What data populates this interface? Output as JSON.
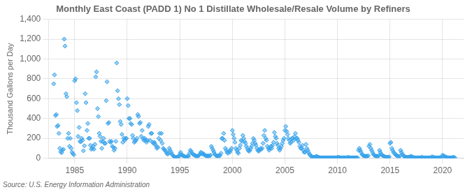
{
  "chart_data": {
    "type": "scatter",
    "title": "Monthly East Coast (PADD 1) No 1 Distillate Wholesale/Resale Volume by Refiners",
    "y_label": "Thousand Gallons per Day",
    "source": "Source: U.S. Energy Information Administration",
    "marker": "diamond",
    "grid": true,
    "xlim": [
      1982.5,
      2022.0
    ],
    "xticks": [
      1985,
      1990,
      1995,
      2000,
      2005,
      2010,
      2015,
      2020
    ],
    "ylim": [
      0,
      1400
    ],
    "yticks": [
      0,
      200,
      400,
      600,
      800,
      {
        "value": 1000,
        "label": "1,000"
      },
      {
        "value": 1200,
        "label": "1,200"
      },
      {
        "value": 1400,
        "label": "1,400"
      }
    ],
    "x": [
      1983.0,
      1983.08,
      1983.17,
      1983.25,
      1983.33,
      1983.42,
      1983.5,
      1983.58,
      1983.67,
      1983.75,
      1983.83,
      1983.92,
      1984.0,
      1984.08,
      1984.17,
      1984.25,
      1984.33,
      1984.42,
      1984.5,
      1984.58,
      1984.67,
      1984.75,
      1984.83,
      1984.92,
      1985.0,
      1985.08,
      1985.17,
      1985.25,
      1985.33,
      1985.42,
      1985.5,
      1985.58,
      1985.67,
      1985.75,
      1985.83,
      1985.92,
      1986.0,
      1986.08,
      1986.17,
      1986.25,
      1986.33,
      1986.42,
      1986.5,
      1986.58,
      1986.67,
      1986.75,
      1986.83,
      1986.92,
      1987.0,
      1987.08,
      1987.17,
      1987.25,
      1987.33,
      1987.42,
      1987.5,
      1987.58,
      1987.67,
      1987.75,
      1987.83,
      1987.92,
      1988.0,
      1988.08,
      1988.17,
      1988.25,
      1988.33,
      1988.42,
      1988.5,
      1988.58,
      1988.67,
      1988.75,
      1988.83,
      1988.92,
      1989.0,
      1989.08,
      1989.17,
      1989.25,
      1989.33,
      1989.42,
      1989.5,
      1989.58,
      1989.67,
      1989.75,
      1989.83,
      1989.92,
      1990.0,
      1990.08,
      1990.17,
      1990.25,
      1990.33,
      1990.42,
      1990.5,
      1990.58,
      1990.67,
      1990.75,
      1990.83,
      1990.92,
      1991.0,
      1991.08,
      1991.17,
      1991.25,
      1991.33,
      1991.42,
      1991.5,
      1991.58,
      1991.67,
      1991.75,
      1991.83,
      1991.92,
      1992.0,
      1992.08,
      1992.17,
      1992.25,
      1992.33,
      1992.42,
      1992.5,
      1992.58,
      1992.67,
      1992.75,
      1992.83,
      1992.92,
      1993.0,
      1993.08,
      1993.17,
      1993.25,
      1993.33,
      1993.42,
      1993.5,
      1993.58,
      1993.67,
      1993.75,
      1993.83,
      1993.92,
      1994.0,
      1994.08,
      1994.17,
      1994.25,
      1994.33,
      1994.42,
      1994.5,
      1994.58,
      1994.67,
      1994.75,
      1994.83,
      1994.92,
      1995.0,
      1995.08,
      1995.17,
      1995.25,
      1995.33,
      1995.42,
      1995.5,
      1995.58,
      1995.67,
      1995.75,
      1995.83,
      1995.92,
      1996.0,
      1996.08,
      1996.17,
      1996.25,
      1996.33,
      1996.42,
      1996.5,
      1996.58,
      1996.67,
      1996.75,
      1996.83,
      1996.92,
      1997.0,
      1997.08,
      1997.17,
      1997.25,
      1997.33,
      1997.42,
      1997.5,
      1997.58,
      1997.67,
      1997.75,
      1997.83,
      1997.92,
      1998.0,
      1998.08,
      1998.17,
      1998.25,
      1998.33,
      1998.42,
      1998.5,
      1998.58,
      1998.67,
      1998.75,
      1998.83,
      1998.92,
      1999.0,
      1999.08,
      1999.17,
      1999.25,
      1999.33,
      1999.42,
      1999.5,
      1999.58,
      1999.67,
      1999.75,
      1999.83,
      1999.92,
      2000.0,
      2000.08,
      2000.17,
      2000.25,
      2000.33,
      2000.42,
      2000.5,
      2000.58,
      2000.67,
      2000.75,
      2000.83,
      2000.92,
      2001.0,
      2001.08,
      2001.17,
      2001.25,
      2001.33,
      2001.42,
      2001.5,
      2001.58,
      2001.67,
      2001.75,
      2001.83,
      2001.92,
      2002.0,
      2002.08,
      2002.17,
      2002.25,
      2002.33,
      2002.42,
      2002.5,
      2002.58,
      2002.67,
      2002.75,
      2002.83,
      2002.92,
      2003.0,
      2003.08,
      2003.17,
      2003.25,
      2003.33,
      2003.42,
      2003.5,
      2003.58,
      2003.67,
      2003.75,
      2003.83,
      2003.92,
      2004.0,
      2004.08,
      2004.17,
      2004.25,
      2004.33,
      2004.42,
      2004.5,
      2004.58,
      2004.67,
      2004.75,
      2004.83,
      2004.92,
      2005.0,
      2005.08,
      2005.17,
      2005.25,
      2005.33,
      2005.42,
      2005.5,
      2005.58,
      2005.67,
      2005.75,
      2005.83,
      2005.92,
      2006.0,
      2006.08,
      2006.17,
      2006.25,
      2006.33,
      2006.42,
      2006.5,
      2006.58,
      2006.67,
      2006.75,
      2006.83,
      2006.92,
      2007.0,
      2007.08,
      2007.17,
      2007.25,
      2007.33,
      2007.42,
      2007.5,
      2007.58,
      2007.67,
      2007.75,
      2007.83,
      2007.92,
      2008.0,
      2008.08,
      2008.17,
      2008.25,
      2008.33,
      2008.42,
      2008.5,
      2008.58,
      2008.67,
      2008.75,
      2008.83,
      2008.92,
      2009.0,
      2009.08,
      2009.17,
      2009.25,
      2009.33,
      2009.42,
      2009.5,
      2009.58,
      2009.67,
      2009.75,
      2009.83,
      2009.92,
      2010.0,
      2010.08,
      2010.17,
      2010.25,
      2010.33,
      2010.42,
      2010.5,
      2010.58,
      2010.67,
      2010.75,
      2010.83,
      2010.92,
      2011.0,
      2011.08,
      2011.17,
      2011.25,
      2011.33,
      2011.42,
      2011.5,
      2011.58,
      2011.67,
      2011.75,
      2011.83,
      2011.92,
      2012.0,
      2012.08,
      2012.17,
      2012.25,
      2012.33,
      2012.42,
      2012.5,
      2012.58,
      2012.67,
      2012.75,
      2012.83,
      2012.92,
      2013.0,
      2013.08,
      2013.17,
      2013.25,
      2013.33,
      2013.42,
      2013.5,
      2013.58,
      2013.67,
      2013.75,
      2013.83,
      2013.92,
      2014.0,
      2014.08,
      2014.17,
      2014.25,
      2014.33,
      2014.42,
      2014.5,
      2014.58,
      2014.67,
      2014.75,
      2014.83,
      2014.92,
      2015.0,
      2015.08,
      2015.17,
      2015.25,
      2015.33,
      2015.42,
      2015.5,
      2015.58,
      2015.67,
      2015.75,
      2015.83,
      2015.92,
      2016.0,
      2016.08,
      2016.17,
      2016.25,
      2016.33,
      2016.42,
      2016.5,
      2016.58,
      2016.67,
      2016.75,
      2016.83,
      2016.92,
      2017.0,
      2017.08,
      2017.17,
      2017.25,
      2017.33,
      2017.42,
      2017.5,
      2017.58,
      2017.67,
      2017.75,
      2017.83,
      2017.92,
      2018.0,
      2018.08,
      2018.17,
      2018.25,
      2018.33,
      2018.42,
      2018.5,
      2018.58,
      2018.67,
      2018.75,
      2018.83,
      2018.92,
      2019.0,
      2019.08,
      2019.17,
      2019.25,
      2019.33,
      2019.42,
      2019.5,
      2019.58,
      2019.67,
      2019.75,
      2019.83,
      2019.92,
      2020.0,
      2020.08,
      2020.17,
      2020.25,
      2020.33,
      2020.42,
      2020.5,
      2020.58,
      2020.67,
      2020.75,
      2020.83,
      2020.92,
      2021.0,
      2021.08,
      2021.17
    ],
    "values": [
      750,
      840,
      430,
      440,
      320,
      330,
      250,
      100,
      65,
      55,
      80,
      90,
      1200,
      1130,
      650,
      620,
      200,
      250,
      120,
      200,
      100,
      60,
      45,
      35,
      780,
      800,
      560,
      480,
      220,
      310,
      170,
      165,
      200,
      180,
      75,
      125,
      650,
      560,
      280,
      350,
      200,
      200,
      130,
      90,
      100,
      120,
      90,
      140,
      820,
      870,
      500,
      420,
      250,
      220,
      170,
      100,
      170,
      200,
      150,
      150,
      580,
      770,
      350,
      360,
      170,
      160,
      170,
      120,
      110,
      80,
      100,
      170,
      960,
      680,
      600,
      540,
      370,
      340,
      240,
      160,
      200,
      180,
      200,
      200,
      600,
      530,
      400,
      400,
      350,
      340,
      230,
      200,
      160,
      170,
      180,
      200,
      440,
      420,
      350,
      360,
      220,
      280,
      200,
      180,
      200,
      180,
      160,
      180,
      320,
      340,
      180,
      250,
      250,
      160,
      150,
      160,
      140,
      120,
      100,
      110,
      200,
      250,
      180,
      250,
      150,
      100,
      90,
      80,
      70,
      50,
      40,
      50,
      100,
      80,
      60,
      40,
      30,
      20,
      15,
      10,
      8,
      10,
      15,
      20,
      40,
      60,
      35,
      30,
      25,
      20,
      15,
      10,
      15,
      20,
      20,
      50,
      80,
      70,
      50,
      40,
      35,
      30,
      25,
      20,
      20,
      25,
      30,
      40,
      60,
      55,
      40,
      45,
      35,
      30,
      25,
      20,
      25,
      20,
      25,
      30,
      120,
      100,
      80,
      60,
      40,
      30,
      25,
      20,
      25,
      20,
      30,
      50,
      200,
      200,
      250,
      180,
      100,
      80,
      60,
      50,
      70,
      60,
      80,
      100,
      280,
      240,
      200,
      160,
      100,
      80,
      60,
      50,
      100,
      130,
      180,
      170,
      230,
      200,
      170,
      150,
      120,
      100,
      80,
      70,
      80,
      100,
      120,
      150,
      200,
      180,
      150,
      130,
      100,
      80,
      70,
      80,
      100,
      90,
      100,
      150,
      230,
      280,
      200,
      180,
      120,
      100,
      80,
      100,
      120,
      100,
      130,
      160,
      260,
      220,
      200,
      150,
      130,
      100,
      80,
      100,
      120,
      150,
      180,
      200,
      280,
      320,
      270,
      240,
      200,
      180,
      150,
      160,
      200,
      200,
      180,
      220,
      250,
      200,
      200,
      180,
      160,
      120,
      100,
      100,
      130,
      80,
      60,
      60,
      140,
      100,
      80,
      60,
      40,
      30,
      20,
      15,
      10,
      8,
      10,
      15,
      20,
      15,
      10,
      8,
      5,
      5,
      5,
      5,
      5,
      5,
      5,
      5,
      5,
      5,
      5,
      5,
      5,
      5,
      5,
      5,
      5,
      5,
      5,
      5,
      8,
      10,
      8,
      5,
      5,
      5,
      5,
      5,
      5,
      5,
      5,
      5,
      10,
      8,
      5,
      5,
      5,
      5,
      5,
      5,
      5,
      5,
      5,
      5,
      80,
      100,
      80,
      60,
      40,
      30,
      25,
      20,
      20,
      20,
      20,
      25,
      120,
      140,
      100,
      80,
      60,
      40,
      30,
      25,
      20,
      20,
      20,
      25,
      80,
      60,
      40,
      30,
      25,
      20,
      15,
      10,
      10,
      10,
      10,
      15,
      150,
      160,
      100,
      80,
      60,
      50,
      40,
      30,
      25,
      20,
      15,
      20,
      80,
      60,
      40,
      30,
      20,
      15,
      10,
      10,
      10,
      10,
      10,
      15,
      20,
      15,
      10,
      8,
      5,
      5,
      5,
      5,
      5,
      5,
      5,
      5,
      10,
      8,
      5,
      5,
      5,
      5,
      5,
      5,
      5,
      5,
      5,
      5,
      15,
      10,
      8,
      5,
      5,
      5,
      5,
      5,
      5,
      5,
      5,
      5,
      30,
      25,
      20,
      15,
      10,
      8,
      5,
      5,
      5,
      5,
      5,
      5,
      10,
      8,
      5
    ]
  }
}
